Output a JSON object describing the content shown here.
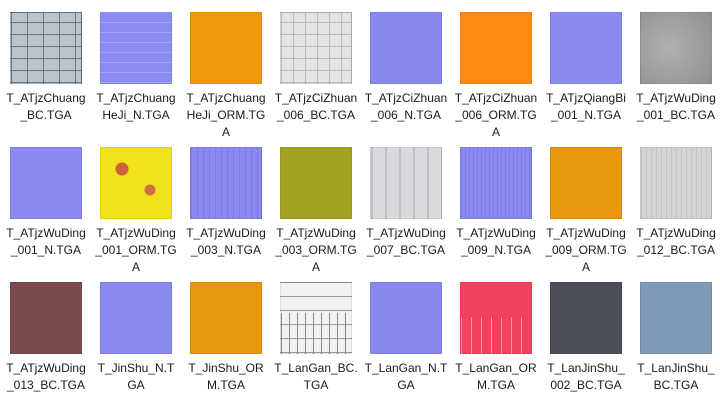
{
  "files": [
    "T_ATjzChuang_BC.TGA",
    "T_ATjzChuangHeJi_N.TGA",
    "T_ATjzChuangHeJi_ORM.TGA",
    "T_ATjzCiZhuan_006_BC.TGA",
    "T_ATjzCiZhuan_006_N.TGA",
    "T_ATjzCiZhuan_006_ORM.TGA",
    "T_ATjzQiangBi_001_N.TGA",
    "T_ATjzWuDing_001_BC.TGA",
    "T_ATjzWuDing_001_N.TGA",
    "T_ATjzWuDing_001_ORM.TGA",
    "T_ATjzWuDing_003_N.TGA",
    "T_ATjzWuDing_003_ORM.TGA",
    "T_ATjzWuDing_007_BC.TGA",
    "T_ATjzWuDing_009_N.TGA",
    "T_ATjzWuDing_009_ORM.TGA",
    "T_ATjzWuDing_012_BC.TGA",
    "T_ATjzWuDing_013_BC.TGA",
    "T_JinShu_N.TGA",
    "T_JinShu_ORM.TGA",
    "T_LanGan_BC.TGA",
    "T_LanGan_N.TGA",
    "T_LanGan_ORM.TGA",
    "T_LanJinShu_002_BC.TGA",
    "T_LanJinShu_BC.TGA"
  ]
}
